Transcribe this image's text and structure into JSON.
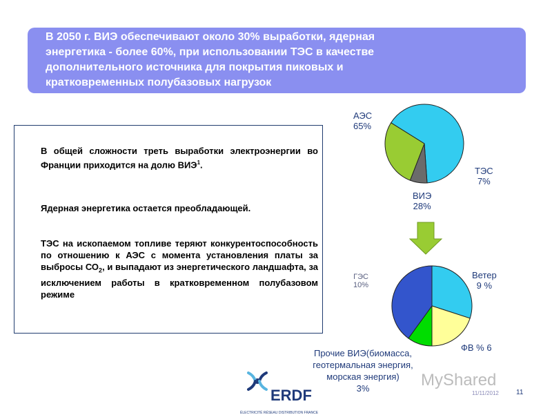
{
  "header": {
    "lines": [
      "В 2050 г. ВИЭ обеспечивают около 30% выработки, ядерная",
      "энергетика - более 60%, при использовании ТЭС  в качестве",
      "дополнительного источника для покрытия пиковых и",
      "кратковременных полубазовых нагрузок"
    ]
  },
  "text_box": {
    "p1": "В общей сложности треть выработки электроэнергии во Франции приходится на долю ВИЭ",
    "p1_sup": "1",
    "p1_end": ".",
    "p2": "Ядерная энергетика остается преобладающей.",
    "p3_a": "ТЭС на ископаемом топливе теряют конкурентоспособность по отношению к АЭС с момента установления платы за выбросы СО",
    "p3_sub": "2",
    "p3_b": ", и выпадают из энергетического ландшафта, за исключением работы в кратковременном полубазовом режиме"
  },
  "chart_data": [
    {
      "type": "pie",
      "slices": [
        {
          "label_name": "АЭС",
          "label_value": "65%",
          "value": 65,
          "color": "#33ccf0"
        },
        {
          "label_name": "ТЭС",
          "label_value": "7%",
          "value": 7,
          "color": "#6b6b6b"
        },
        {
          "label_name": "ВИЭ",
          "label_value": "28%",
          "value": 28,
          "color": "#99cc33"
        }
      ]
    },
    {
      "type": "pie",
      "slices": [
        {
          "label": "Ветер\n9 %",
          "value": 30,
          "color": "#33ccf0"
        },
        {
          "label": "ФВ % 6",
          "value": 20,
          "color": "#ffff99"
        },
        {
          "label": "Прочие ВИЭ(биомасса,\nгеотермальная энергия,\nморская энергия)\n3%",
          "value": 10,
          "color": "#00dd00"
        },
        {
          "label": "ГЭС\n10%",
          "value": 40,
          "color": "#3355cc"
        }
      ]
    }
  ],
  "footer": {
    "logo_text": "ERDF",
    "logo_subtitle": "ÉLECTRICITÉ RÉSEAU DISTRIBUTION FRANCE",
    "date": "11/11/2012",
    "page": "11",
    "watermark": "MyShared"
  },
  "colors": {
    "header_bg": "#8a8ff0",
    "arrow": "#99cc33",
    "label_blue": "#1f3a7a",
    "border": "#1f3b6e"
  }
}
